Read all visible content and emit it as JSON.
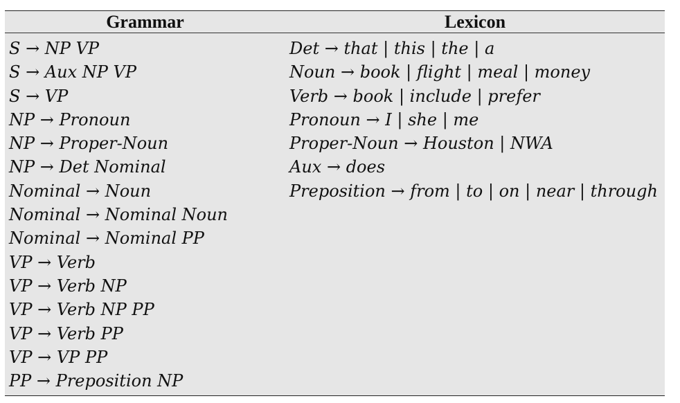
{
  "header": {
    "grammar": "Grammar",
    "lexicon": "Lexicon"
  },
  "grammar_rules": [
    "S → NP VP",
    "S → Aux NP VP",
    "S → VP",
    "NP → Pronoun",
    "NP → Proper-Noun",
    "NP → Det Nominal",
    "Nominal → Noun",
    "Nominal → Nominal Noun",
    "Nominal → Nominal PP",
    "VP → Verb",
    "VP → Verb NP",
    "VP → Verb NP PP",
    "VP → Verb PP",
    "VP → VP PP",
    "PP → Preposition NP"
  ],
  "lexicon_rules": [
    "Det → that | this | the | a",
    "Noun → book | flight | meal | money",
    "Verb → book | include | prefer",
    "Pronoun → I | she | me",
    "Proper-Noun → Houston | NWA",
    "Aux → does",
    "Preposition → from | to | on | near | through"
  ]
}
